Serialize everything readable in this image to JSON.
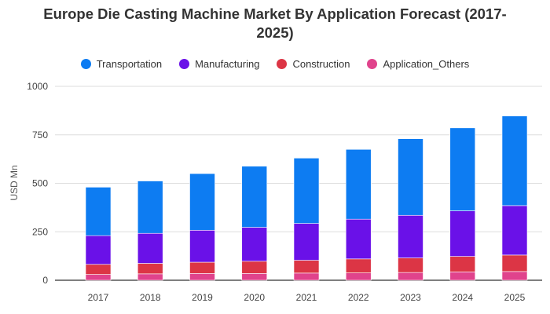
{
  "chart_data": {
    "type": "bar",
    "stacked": true,
    "title_line1": "Europe Die Casting Machine Market By Application Forecast (2017-",
    "title_line2": "2025)",
    "xlabel": "",
    "ylabel": "USD Mn",
    "ylim": [
      0,
      1000
    ],
    "yticks": [
      0,
      250,
      500,
      750,
      1000
    ],
    "grid": true,
    "legend_position": "top",
    "categories": [
      "2017",
      "2018",
      "2019",
      "2020",
      "2021",
      "2022",
      "2023",
      "2024",
      "2025"
    ],
    "series": [
      {
        "name": "Application_Others",
        "color": "#e0438c",
        "values": [
          30,
          33,
          35,
          35,
          37,
          38,
          40,
          43,
          45
        ]
      },
      {
        "name": "Construction",
        "color": "#dc3545",
        "values": [
          52,
          54,
          58,
          63,
          66,
          72,
          75,
          80,
          85
        ]
      },
      {
        "name": "Manufacturing",
        "color": "#6a11e8",
        "values": [
          148,
          155,
          165,
          175,
          190,
          205,
          220,
          235,
          255
        ]
      },
      {
        "name": "Transportation",
        "color": "#0d7cf2",
        "values": [
          250,
          270,
          292,
          315,
          337,
          360,
          395,
          428,
          462
        ]
      }
    ],
    "legend_order": [
      "Transportation",
      "Manufacturing",
      "Construction",
      "Application_Others"
    ]
  }
}
